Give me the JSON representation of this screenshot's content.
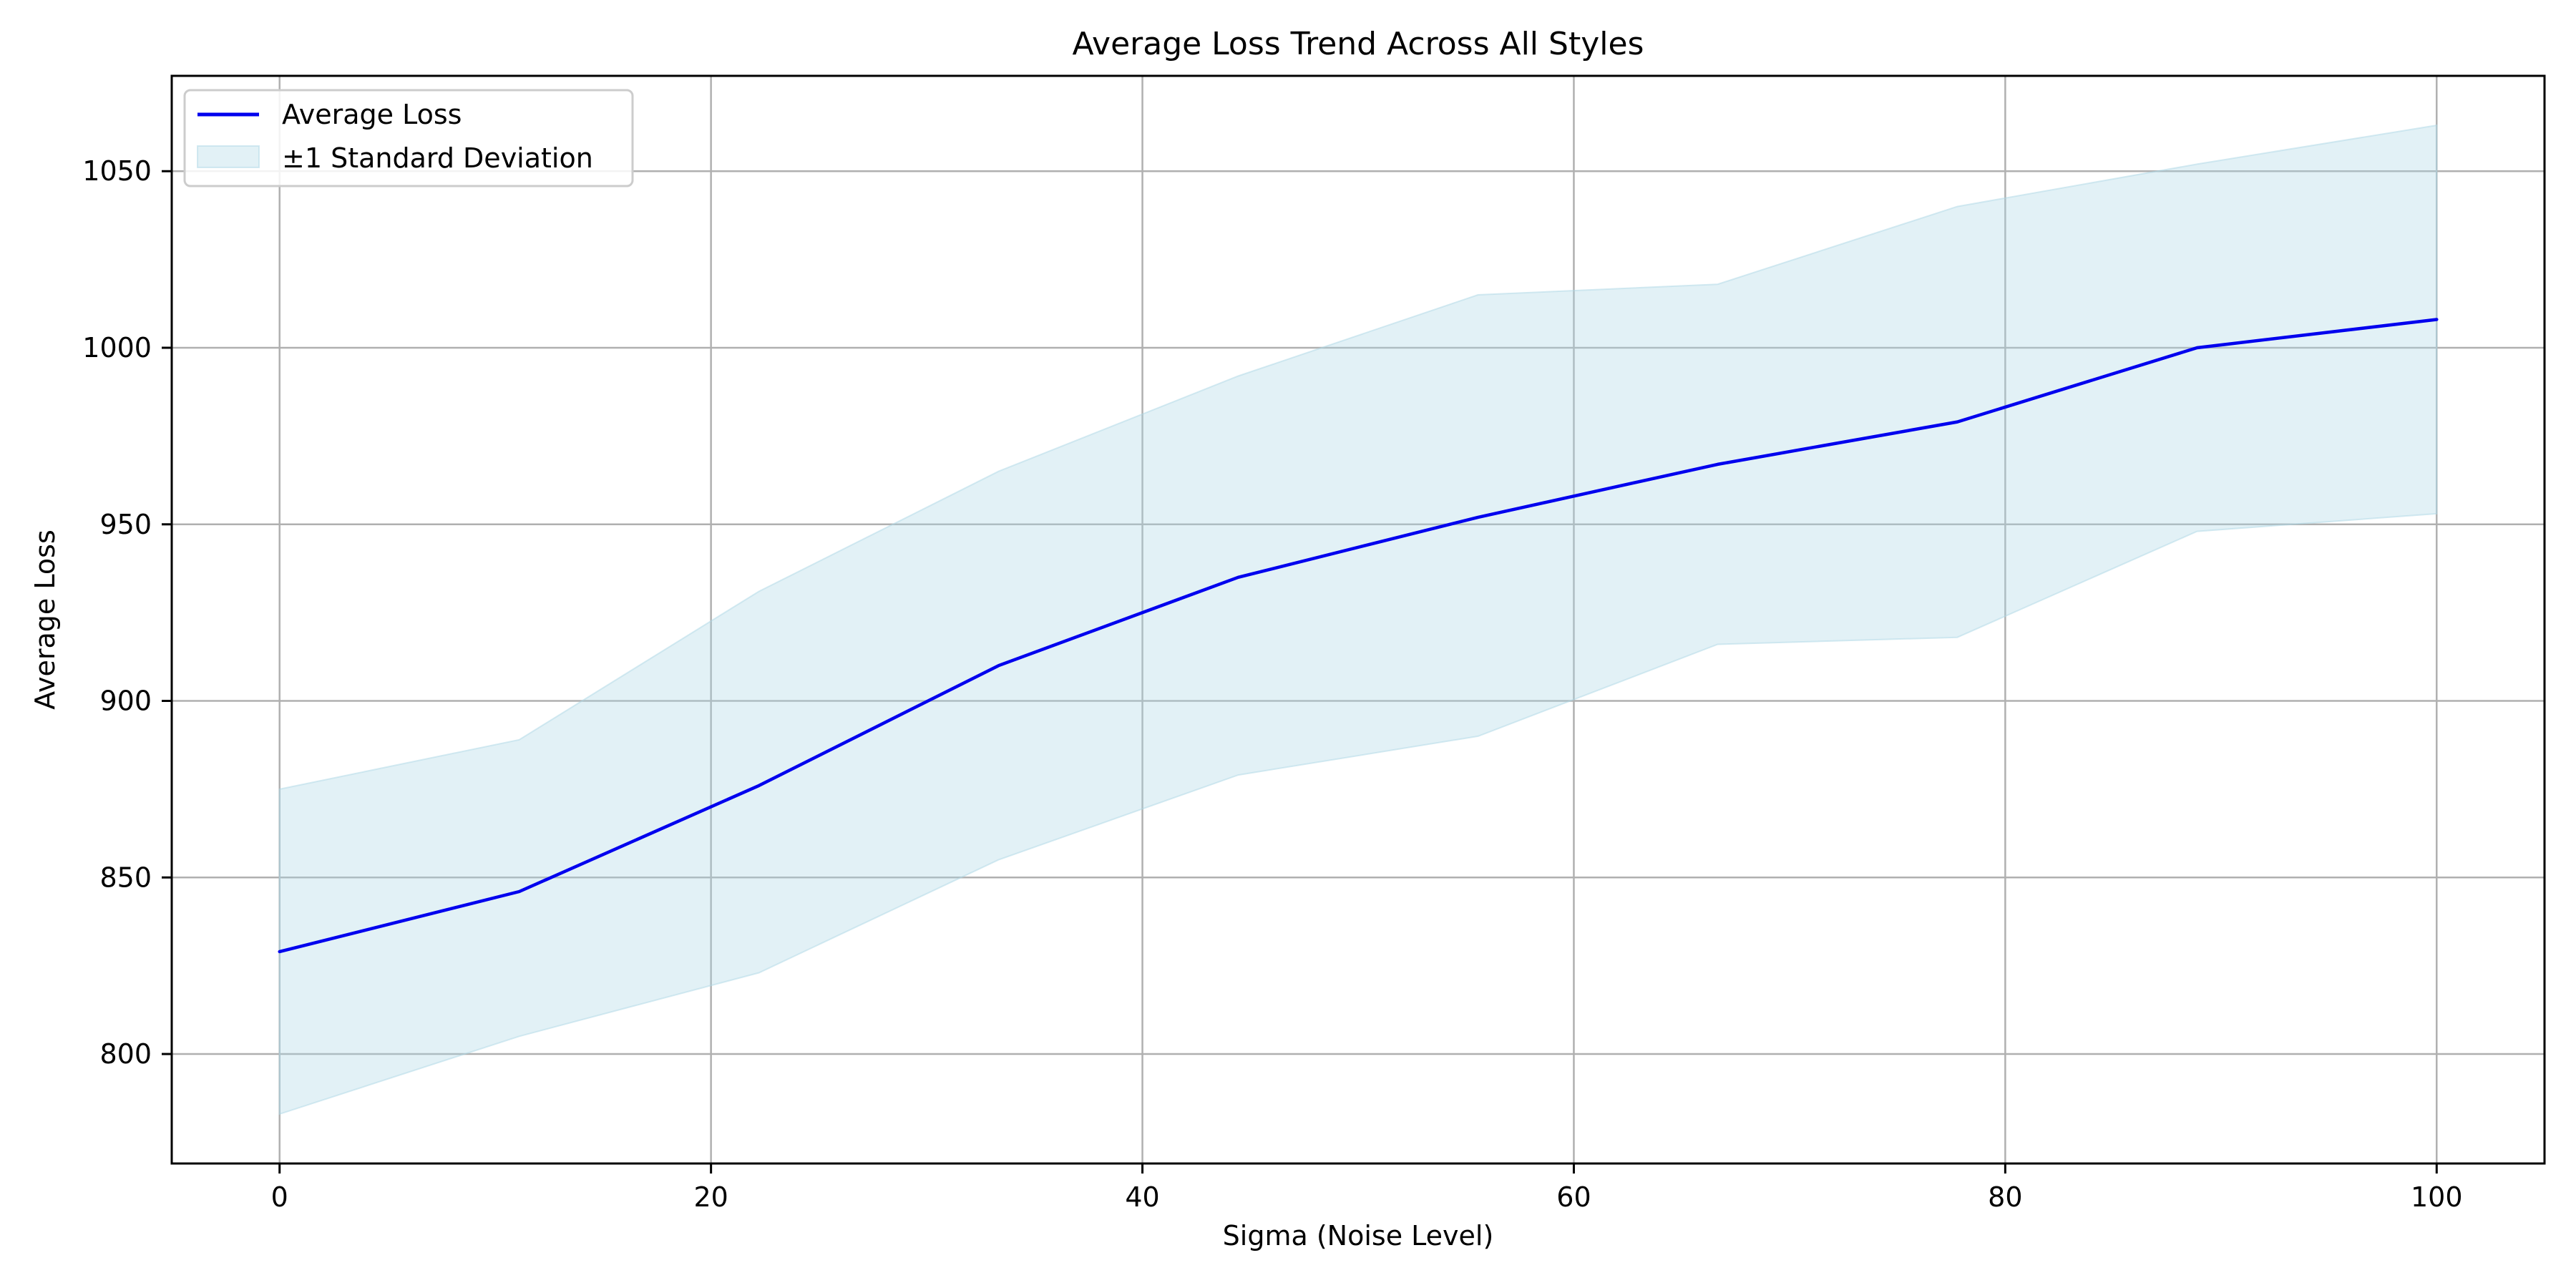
{
  "chart_data": {
    "type": "line",
    "title": "Average Loss Trend Across All Styles",
    "xlabel": "Sigma (Noise Level)",
    "ylabel": "Average Loss",
    "xlim": [
      -5,
      105
    ],
    "ylim": [
      769,
      1077
    ],
    "xticks": [
      0,
      20,
      40,
      60,
      80,
      100
    ],
    "yticks": [
      800,
      850,
      900,
      950,
      1000,
      1050
    ],
    "grid": true,
    "legend_position": "upper-left",
    "x": [
      0,
      11.11,
      22.22,
      33.33,
      44.44,
      55.56,
      66.67,
      77.78,
      88.89,
      100
    ],
    "series": [
      {
        "name": "Average Loss",
        "color": "#0000ee",
        "values": [
          829,
          846,
          876,
          910,
          935,
          952,
          967,
          979,
          1000,
          1008
        ]
      }
    ],
    "band": {
      "name": "±1 Standard Deviation",
      "color": "#add8e6",
      "upper": [
        875,
        889,
        931,
        965,
        992,
        1015,
        1018,
        1040,
        1052,
        1063
      ],
      "lower": [
        783,
        805,
        823,
        855,
        879,
        890,
        916,
        918,
        948,
        953
      ]
    }
  }
}
